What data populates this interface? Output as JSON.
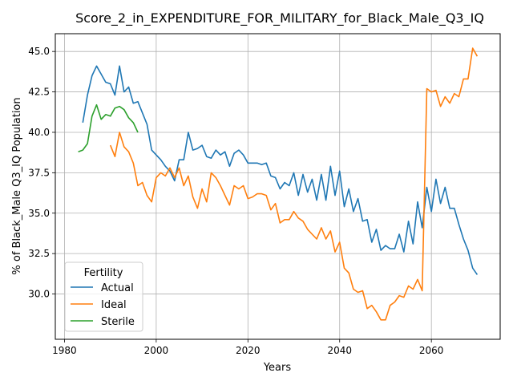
{
  "chart_data": {
    "type": "line",
    "title": "Score_2_in_EXPENDITURE_FOR_MILITARY_for_Black_Male_Q3_IQ",
    "xlabel": "Years",
    "ylabel": "% of Black_Male Q3_IQ Population",
    "xlim": [
      1978,
      2075
    ],
    "ylim": [
      27.2,
      46.1
    ],
    "xticks": [
      1980,
      2000,
      2020,
      2040,
      2060
    ],
    "yticks": [
      30.0,
      32.5,
      35.0,
      37.5,
      40.0,
      42.5,
      45.0
    ],
    "grid": true,
    "legend": {
      "title": "Fertility",
      "placement": "lower-left"
    },
    "series": [
      {
        "name": "Actual",
        "color": "#1f77b4",
        "x": [
          1984,
          1985,
          1986,
          1987,
          1988,
          1989,
          1990,
          1991,
          1992,
          1993,
          1994,
          1995,
          1996,
          1997,
          1998,
          1999,
          2000,
          2001,
          2002,
          2003,
          2004,
          2005,
          2006,
          2007,
          2008,
          2009,
          2010,
          2011,
          2012,
          2013,
          2014,
          2015,
          2016,
          2017,
          2018,
          2019,
          2020,
          2021,
          2022,
          2023,
          2024,
          2025,
          2026,
          2027,
          2028,
          2029,
          2030,
          2031,
          2032,
          2033,
          2034,
          2035,
          2036,
          2037,
          2038,
          2039,
          2040,
          2041,
          2042,
          2043,
          2044,
          2045,
          2046,
          2047,
          2048,
          2049,
          2050,
          2051,
          2052,
          2053,
          2054,
          2055,
          2056,
          2057,
          2058,
          2059,
          2060,
          2061,
          2062,
          2063,
          2064,
          2065,
          2066,
          2067,
          2068,
          2069,
          2070
        ],
        "values": [
          40.6,
          42.3,
          43.5,
          44.1,
          43.6,
          43.1,
          43.0,
          42.3,
          44.1,
          42.5,
          42.8,
          41.8,
          41.9,
          41.2,
          40.5,
          38.9,
          38.6,
          38.3,
          37.9,
          37.6,
          37.0,
          38.3,
          38.3,
          40.0,
          38.9,
          39.0,
          39.2,
          38.5,
          38.4,
          38.9,
          38.6,
          38.8,
          37.9,
          38.7,
          38.9,
          38.6,
          38.1,
          38.1,
          38.1,
          38.0,
          38.1,
          37.3,
          37.2,
          36.5,
          36.9,
          36.7,
          37.5,
          36.1,
          37.4,
          36.3,
          37.1,
          35.8,
          37.4,
          35.8,
          37.9,
          36.1,
          37.6,
          35.4,
          36.5,
          35.1,
          35.9,
          34.5,
          34.6,
          33.2,
          34.0,
          32.7,
          33.0,
          32.8,
          32.8,
          33.7,
          32.6,
          34.5,
          33.1,
          35.7,
          34.1,
          36.6,
          35.1,
          37.1,
          35.6,
          36.6,
          35.3,
          35.3,
          34.3,
          33.4,
          32.7,
          31.6,
          31.2
        ]
      },
      {
        "name": "Ideal",
        "color": "#ff7f0e",
        "x": [
          1990,
          1991,
          1992,
          1993,
          1994,
          1995,
          1996,
          1997,
          1998,
          1999,
          2000,
          2001,
          2002,
          2003,
          2004,
          2005,
          2006,
          2007,
          2008,
          2009,
          2010,
          2011,
          2012,
          2013,
          2014,
          2015,
          2016,
          2017,
          2018,
          2019,
          2020,
          2021,
          2022,
          2023,
          2024,
          2025,
          2026,
          2027,
          2028,
          2029,
          2030,
          2031,
          2032,
          2033,
          2034,
          2035,
          2036,
          2037,
          2038,
          2039,
          2040,
          2041,
          2042,
          2043,
          2044,
          2045,
          2046,
          2047,
          2048,
          2049,
          2050,
          2051,
          2052,
          2053,
          2054,
          2055,
          2056,
          2057,
          2058,
          2059,
          2060,
          2061,
          2062,
          2063,
          2064,
          2065,
          2066,
          2067,
          2068,
          2069,
          2070
        ],
        "values": [
          39.2,
          38.5,
          40.0,
          39.1,
          38.8,
          38.1,
          36.7,
          36.9,
          36.1,
          35.7,
          37.2,
          37.5,
          37.3,
          37.8,
          37.2,
          37.8,
          36.7,
          37.3,
          36.0,
          35.3,
          36.5,
          35.7,
          37.5,
          37.2,
          36.7,
          36.1,
          35.5,
          36.7,
          36.5,
          36.7,
          35.9,
          36.0,
          36.2,
          36.2,
          36.1,
          35.2,
          35.6,
          34.4,
          34.6,
          34.6,
          35.1,
          34.7,
          34.5,
          34.0,
          33.7,
          33.4,
          34.1,
          33.4,
          33.9,
          32.6,
          33.2,
          31.6,
          31.3,
          30.3,
          30.1,
          30.2,
          29.1,
          29.3,
          28.9,
          28.4,
          28.4,
          29.3,
          29.5,
          29.9,
          29.8,
          30.5,
          30.3,
          30.9,
          30.2,
          42.7,
          42.5,
          42.6,
          41.6,
          42.2,
          41.8,
          42.4,
          42.2,
          43.3,
          43.3,
          45.2,
          44.7
        ]
      },
      {
        "name": "Sterile",
        "color": "#2ca02c",
        "x": [
          1983,
          1984,
          1985,
          1986,
          1987,
          1988,
          1989,
          1990,
          1991,
          1992,
          1993,
          1994,
          1995,
          1996
        ],
        "values": [
          38.8,
          38.9,
          39.3,
          41.0,
          41.7,
          40.8,
          41.1,
          41.0,
          41.5,
          41.6,
          41.4,
          40.9,
          40.6,
          40.0
        ]
      }
    ]
  }
}
